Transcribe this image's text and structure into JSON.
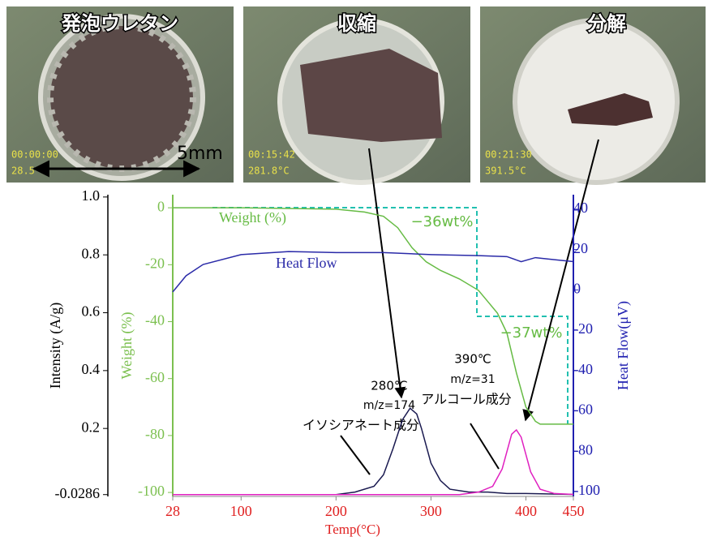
{
  "photos": [
    {
      "title": "発泡ウレタン",
      "time": "00:00:00",
      "temp": "28.5°C"
    },
    {
      "title": "収縮",
      "time": "00:15:42",
      "temp": "281.8°C"
    },
    {
      "title": "分解",
      "time": "00:21:30",
      "temp": "391.5°C"
    }
  ],
  "scale_label": "5mm",
  "chart_data": {
    "type": "line",
    "xlabel": "Temp(°C)",
    "ylabel": "Intensity (A/g)",
    "y2label": "Heat Flow(μV)",
    "y3label": "Weight (%)",
    "xlim": [
      28,
      450
    ],
    "xticks": [
      28,
      100,
      200,
      300,
      400,
      450
    ],
    "ylim": [
      -0.035,
      1.008
    ],
    "yticks": [
      {
        "value": 1.0,
        "label": "1.0"
      },
      0.8,
      0.6,
      0.4,
      0.2,
      -0.0286
    ],
    "y2lim": [
      -102.4,
      47.2
    ],
    "y2ticks": [
      40,
      20,
      0,
      -20,
      -40,
      -60,
      -80,
      -100
    ],
    "y3lim": [
      -101.4,
      4.6
    ],
    "y3ticks": [
      0,
      -20,
      -40,
      -60,
      -80,
      -100
    ],
    "axis_colors": {
      "x": "#e02020",
      "y": "#000000",
      "y2": "#2020b0",
      "y3": "#7cc050"
    },
    "series": [
      {
        "name": "Weight (%)",
        "color": "#66bb44",
        "axis": "y3",
        "x": [
          28,
          100,
          200,
          230,
          250,
          265,
          280,
          295,
          310,
          330,
          350,
          360,
          370,
          380,
          390,
          400,
          410,
          415,
          450
        ],
        "values": [
          0,
          0,
          -0.5,
          -1.5,
          -3,
          -7,
          -14,
          -19,
          -22,
          -25,
          -29,
          -33,
          -37,
          -44,
          -58,
          -70,
          -75,
          -76,
          -76
        ]
      },
      {
        "name": "Heat Flow",
        "color": "#2a2aa8",
        "axis": "y2",
        "x": [
          28,
          42,
          60,
          100,
          150,
          200,
          250,
          300,
          350,
          380,
          395,
          410,
          430,
          450
        ],
        "values": [
          -1,
          7,
          12.6,
          17.5,
          19,
          18.5,
          18.5,
          17.5,
          17,
          16.5,
          14,
          16,
          15,
          14
        ]
      },
      {
        "name": "m/z=174",
        "color": "#1a1a50",
        "axis": "y",
        "x": [
          28,
          200,
          220,
          240,
          250,
          260,
          270,
          278,
          285,
          290,
          300,
          310,
          320,
          340,
          360,
          380,
          400,
          450
        ],
        "values": [
          -0.0286,
          -0.0286,
          -0.02,
          0,
          0.04,
          0.13,
          0.23,
          0.27,
          0.25,
          0.2,
          0.08,
          0.02,
          -0.01,
          -0.02,
          -0.02,
          -0.025,
          -0.025,
          -0.028
        ]
      },
      {
        "name": "m/z=31",
        "color": "#e020c0",
        "axis": "y",
        "x": [
          28,
          330,
          350,
          365,
          375,
          385,
          390,
          395,
          405,
          415,
          430,
          450
        ],
        "values": [
          -0.0286,
          -0.0286,
          -0.02,
          0,
          0.06,
          0.18,
          0.195,
          0.17,
          0.05,
          -0.01,
          -0.025,
          -0.028
        ]
      }
    ],
    "annotations": [
      "−36wt%",
      "−37wt%",
      "280℃",
      "イソシアネート成分",
      "390℃",
      "アルコール成分"
    ]
  }
}
